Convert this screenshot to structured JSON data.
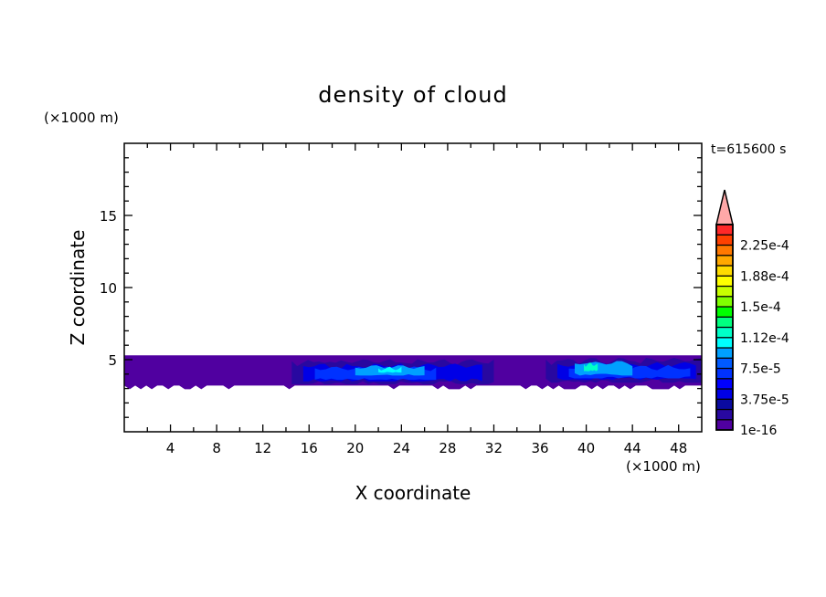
{
  "chart_data": {
    "type": "heatmap",
    "subtype": "filled-contour",
    "title": "density of cloud",
    "xlabel": "X coordinate",
    "ylabel": "Z coordinate",
    "x_unit": "(×1000 m)",
    "y_unit": "(×1000 m)",
    "time_label": "t=615600 s",
    "xlim": [
      0,
      50
    ],
    "ylim": [
      0,
      20
    ],
    "x_ticks": [
      4,
      8,
      12,
      16,
      20,
      24,
      28,
      32,
      36,
      40,
      44,
      48
    ],
    "y_ticks": [
      5,
      10,
      15
    ],
    "grid": false,
    "colorbar": {
      "placement": "right",
      "levels_min": 1e-16,
      "level_step": 1.25e-05,
      "levels_count": 20,
      "overflow_triangle": true,
      "overflow_color": "#ffa8a8",
      "tick_labels": [
        "1e-16",
        "3.75e-5",
        "7.5e-5",
        "1.12e-4",
        "1.5e-4",
        "1.88e-4",
        "2.25e-4"
      ],
      "tick_values": [
        1e-16,
        3.75e-05,
        7.5e-05,
        0.0001125,
        0.00015,
        0.0001875,
        0.000225
      ],
      "colors": [
        "#5000a0",
        "#2808a0",
        "#0a0aa0",
        "#0000e6",
        "#0000ff",
        "#0032ff",
        "#005aff",
        "#00a0ff",
        "#00ffff",
        "#00ffc8",
        "#00ff80",
        "#00ff00",
        "#80ff00",
        "#c8ff00",
        "#ffff00",
        "#ffdc00",
        "#ffa800",
        "#ff7800",
        "#ff4000",
        "#ff2828"
      ]
    },
    "field_regions": [
      {
        "x": [
          0,
          50
        ],
        "z": [
          3.2,
          5.3
        ],
        "level": 0
      },
      {
        "x": [
          14.5,
          32
        ],
        "z": [
          3.3,
          4.9
        ],
        "level": 1
      },
      {
        "x": [
          15.5,
          31
        ],
        "z": [
          3.5,
          4.6
        ],
        "level": 3
      },
      {
        "x": [
          16.5,
          27
        ],
        "z": [
          3.6,
          4.4
        ],
        "level": 5
      },
      {
        "x": [
          20,
          26
        ],
        "z": [
          3.9,
          4.5
        ],
        "level": 7
      },
      {
        "x": [
          22,
          24
        ],
        "z": [
          4.1,
          4.4
        ],
        "level": 8
      },
      {
        "x": [
          36.5,
          50
        ],
        "z": [
          3.4,
          5.0
        ],
        "level": 1
      },
      {
        "x": [
          37.5,
          49.5
        ],
        "z": [
          3.6,
          4.7
        ],
        "level": 3
      },
      {
        "x": [
          38.5,
          49
        ],
        "z": [
          3.7,
          4.5
        ],
        "level": 5
      },
      {
        "x": [
          39,
          44
        ],
        "z": [
          3.9,
          4.8
        ],
        "level": 7
      },
      {
        "x": [
          39.8,
          41
        ],
        "z": [
          4.2,
          4.7
        ],
        "level": 9
      }
    ]
  }
}
